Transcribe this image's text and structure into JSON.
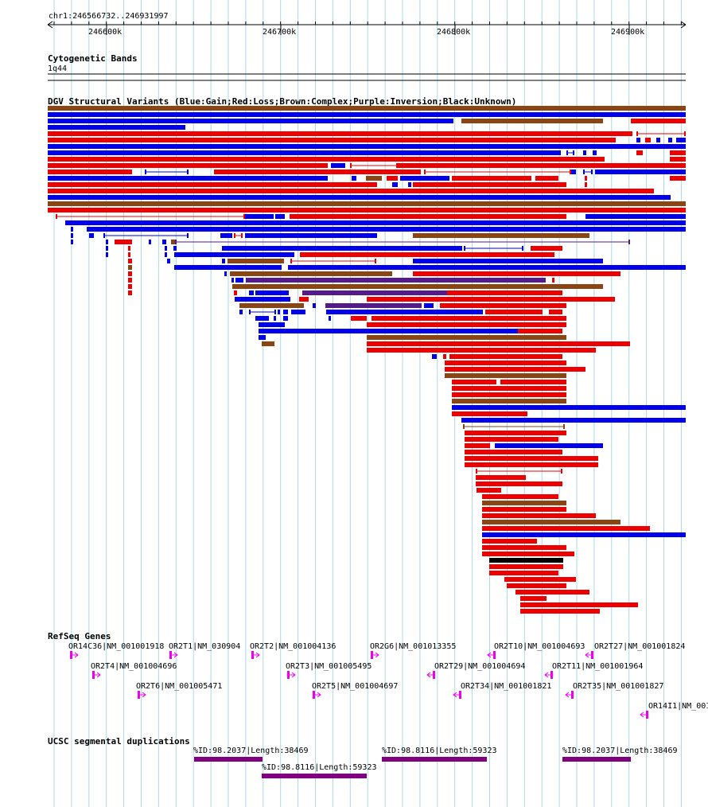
{
  "ruler": {
    "position_label": "chr1:246566732..246931997",
    "ticks": [
      "246600k",
      "246700k",
      "246800k",
      "246900k"
    ]
  },
  "tracks": {
    "cytoband": {
      "title": "Cytogenetic Bands",
      "band_label": "1q44"
    },
    "dgv": {
      "title": "DGV Structural Variants (Blue:Gain;Red:Loss;Brown:Complex;Purple:Inversion;Black:Unknown)"
    },
    "refseq": {
      "title": "RefSeq Genes"
    },
    "segdup": {
      "title": "UCSC segmental duplications"
    }
  },
  "colors": {
    "gain": "#0000ee",
    "loss": "#ee0000",
    "complex": "#8b4513",
    "inversion": "#551a8b",
    "unknown": "#000000",
    "gene": "#ee00ee",
    "segdup": "#800080",
    "grid": "#add8e6"
  },
  "genes": [
    {
      "label": "OR14C36|NM_001001918",
      "strand": "+"
    },
    {
      "label": "OR2T1|NM_030904",
      "strand": "+"
    },
    {
      "label": "OR2T2|NM_001004136",
      "strand": "+"
    },
    {
      "label": "OR2G6|NM_001013355",
      "strand": "+"
    },
    {
      "label": "OR2T10|NM_001004693",
      "strand": "-"
    },
    {
      "label": "OR2T27|NM_001001824",
      "strand": "-"
    },
    {
      "label": "OR2T4|NM_001004696",
      "strand": "+"
    },
    {
      "label": "OR2T3|NM_001005495",
      "strand": "+"
    },
    {
      "label": "OR2T29|NM_001004694",
      "strand": "-"
    },
    {
      "label": "OR2T11|NM_001001964",
      "strand": "-"
    },
    {
      "label": "OR2T6|NM_001005471",
      "strand": "+"
    },
    {
      "label": "OR2T5|NM_001004697",
      "strand": "+"
    },
    {
      "label": "OR2T34|NM_001001821",
      "strand": "-"
    },
    {
      "label": "OR2T35|NM_001001827",
      "strand": "-"
    },
    {
      "label": "OR14I1|NM_001",
      "strand": "-"
    }
  ],
  "segdups": [
    {
      "label": "%ID:98.2037|Length:38469"
    },
    {
      "label": "%ID:98.8116|Length:59323"
    },
    {
      "label": "%ID:98.2037|Length:38469"
    },
    {
      "label": "%ID:98.8116|Length:59323"
    }
  ]
}
